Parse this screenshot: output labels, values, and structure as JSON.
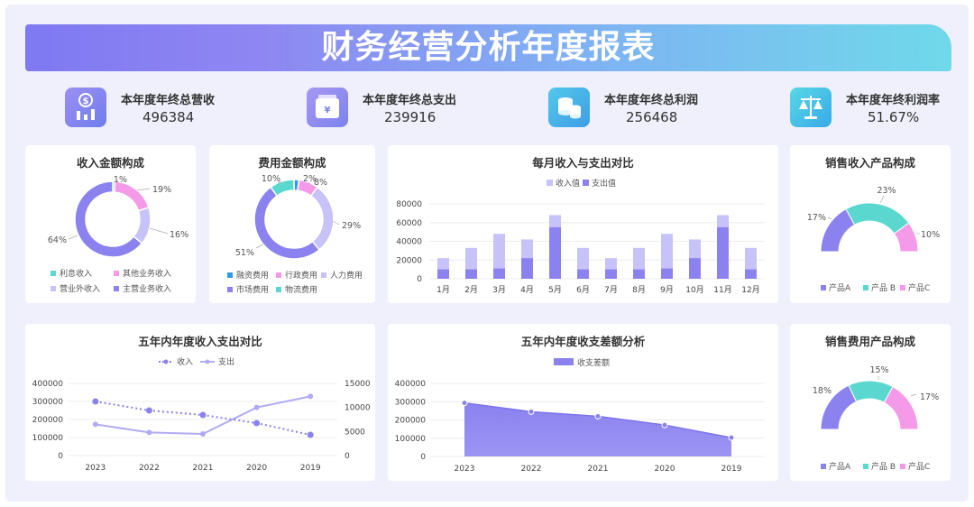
{
  "title": "财务经营分析年度报表",
  "kpis": [
    {
      "label": "本年度年终总营收",
      "value": "496384",
      "icon": "revenue-icon"
    },
    {
      "label": "本年度年终总支出",
      "value": "239916",
      "icon": "expense-icon"
    },
    {
      "label": "本年度年终总利润",
      "value": "256468",
      "icon": "profit-icon"
    },
    {
      "label": "本年度年终利润率",
      "value": "51.67%",
      "icon": "balance-scale-icon"
    }
  ],
  "colors": {
    "purple": "#8b82ef",
    "light_purple": "#c7c2f7",
    "pink": "#f59ae8",
    "cyan": "#5ad8d0",
    "blue": "#2e9be6",
    "violet_bg": "#eff0fb"
  },
  "cards": {
    "income_composition": {
      "title": "收入金额构成"
    },
    "expense_composition": {
      "title": "费用金额构成"
    },
    "monthly": {
      "title": "每月收入与支出对比"
    },
    "sales_income_product": {
      "title": "销售收入产品构成"
    },
    "five_year_compare": {
      "title": "五年内年度收入支出对比"
    },
    "five_year_diff": {
      "title": "五年内年度收支差额分析"
    },
    "sales_expense_product": {
      "title": "销售费用产品构成"
    }
  },
  "chart_data": [
    {
      "id": "income_composition",
      "type": "pie",
      "title": "收入金额构成",
      "slices": [
        {
          "name": "利息收入",
          "value": 1,
          "label": "1%",
          "color": "#5ad8d0"
        },
        {
          "name": "其他业务收入",
          "value": 19,
          "label": "19%",
          "color": "#f59ae8"
        },
        {
          "name": "营业外收入",
          "value": 16,
          "label": "16%",
          "color": "#c7c2f7"
        },
        {
          "name": "主营业务收入",
          "value": 64,
          "label": "64%",
          "color": "#8b82ef"
        }
      ]
    },
    {
      "id": "expense_composition",
      "type": "pie",
      "title": "费用金额构成",
      "slices": [
        {
          "name": "融资费用",
          "value": 2,
          "label": "2%",
          "color": "#2e9be6"
        },
        {
          "name": "行政费用",
          "value": 8,
          "label": "8%",
          "color": "#f59ae8"
        },
        {
          "name": "人力费用",
          "value": 29,
          "label": "29%",
          "color": "#c7c2f7"
        },
        {
          "name": "市场费用",
          "value": 51,
          "label": "51%",
          "color": "#8b82ef"
        },
        {
          "name": "物流费用",
          "value": 10,
          "label": "10%",
          "color": "#5ad8d0"
        }
      ]
    },
    {
      "id": "monthly",
      "type": "bar",
      "title": "每月收入与支出对比",
      "categories": [
        "1月",
        "2月",
        "3月",
        "4月",
        "5月",
        "6月",
        "7月",
        "8月",
        "9月",
        "10月",
        "11月",
        "12月"
      ],
      "series": [
        {
          "name": "收入值",
          "values": [
            22000,
            33000,
            48000,
            42000,
            68000,
            33000,
            22000,
            33000,
            48000,
            42000,
            68000,
            33000
          ]
        },
        {
          "name": "支出值",
          "values": [
            10000,
            10000,
            11000,
            22000,
            55000,
            10000,
            10000,
            10000,
            11000,
            22000,
            55000,
            10000
          ]
        }
      ],
      "yticks": [
        "0",
        "20000",
        "40000",
        "60000",
        "80000"
      ],
      "ylim": [
        0,
        80000
      ],
      "legend_position": "top"
    },
    {
      "id": "sales_income_product",
      "type": "pie",
      "title": "销售收入产品构成",
      "slices": [
        {
          "name": "产品A",
          "value": 17,
          "label": "17%",
          "color": "#8b82ef"
        },
        {
          "name": "产品 B",
          "value": 23,
          "label": "23%",
          "color": "#5ad8d0"
        },
        {
          "name": "产品C",
          "value": 10,
          "label": "10%",
          "color": "#f59ae8"
        }
      ]
    },
    {
      "id": "five_year_compare",
      "type": "line",
      "title": "五年内年度收入支出对比",
      "categories": [
        "2023",
        "2022",
        "2021",
        "2020",
        "2019"
      ],
      "series": [
        {
          "name": "收入",
          "values": [
            300000,
            250000,
            225000,
            180000,
            115000
          ],
          "axis": "left",
          "style": "dotted"
        },
        {
          "name": "支出",
          "values": [
            6500,
            4800,
            4500,
            10000,
            12300
          ],
          "axis": "right",
          "style": "solid"
        }
      ],
      "yticks_left": [
        "0",
        "100000",
        "200000",
        "300000",
        "400000"
      ],
      "yticks_right": [
        "0",
        "5000",
        "10000",
        "15000"
      ],
      "ylim_left": [
        0,
        400000
      ],
      "ylim_right": [
        0,
        15000
      ]
    },
    {
      "id": "five_year_diff",
      "type": "area",
      "title": "五年内年度收支差额分析",
      "categories": [
        "2023",
        "2022",
        "2021",
        "2020",
        "2019"
      ],
      "series": [
        {
          "name": "收支差额",
          "values": [
            293000,
            245000,
            220000,
            172000,
            103000
          ]
        }
      ],
      "yticks": [
        "0",
        "100000",
        "200000",
        "300000",
        "400000"
      ],
      "ylim": [
        0,
        400000
      ]
    },
    {
      "id": "sales_expense_product",
      "type": "pie",
      "title": "销售费用产品构成",
      "slices": [
        {
          "name": "产品A",
          "value": 18,
          "label": "18%",
          "color": "#8b82ef"
        },
        {
          "name": "产品 B",
          "value": 15,
          "label": "15%",
          "color": "#5ad8d0"
        },
        {
          "name": "产品C",
          "value": 17,
          "label": "17%",
          "color": "#f59ae8"
        }
      ]
    }
  ]
}
